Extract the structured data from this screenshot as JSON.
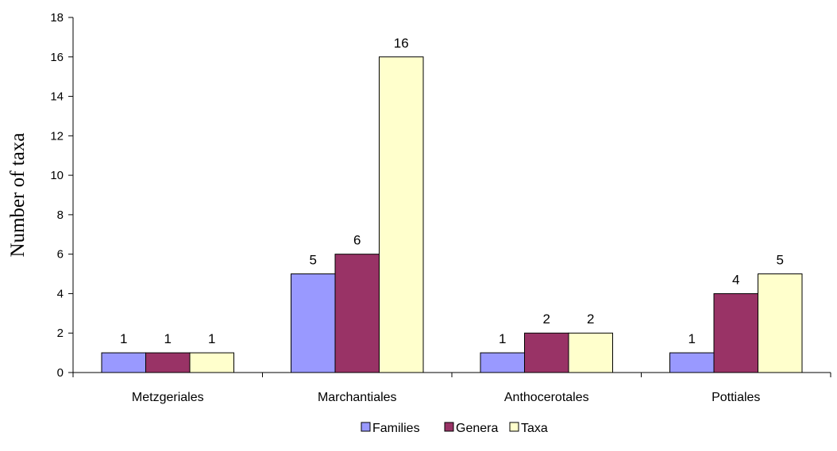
{
  "chart_data": {
    "type": "bar",
    "categories": [
      "Metzgeriales",
      "Marchantiales",
      "Anthocerotales",
      "Pottiales"
    ],
    "series": [
      {
        "name": "Families",
        "values": [
          1,
          5,
          1,
          1
        ]
      },
      {
        "name": "Genera",
        "values": [
          1,
          6,
          2,
          4
        ]
      },
      {
        "name": "Taxa",
        "values": [
          1,
          16,
          2,
          5
        ]
      }
    ],
    "ylabel": "Number of taxa",
    "ylim": [
      0,
      18
    ],
    "yticks": [
      0,
      2,
      4,
      6,
      8,
      10,
      12,
      14,
      16,
      18
    ],
    "grid": false,
    "legend_position": "bottom",
    "colors": [
      "#9999ff",
      "#993366",
      "#ffffcc"
    ]
  }
}
